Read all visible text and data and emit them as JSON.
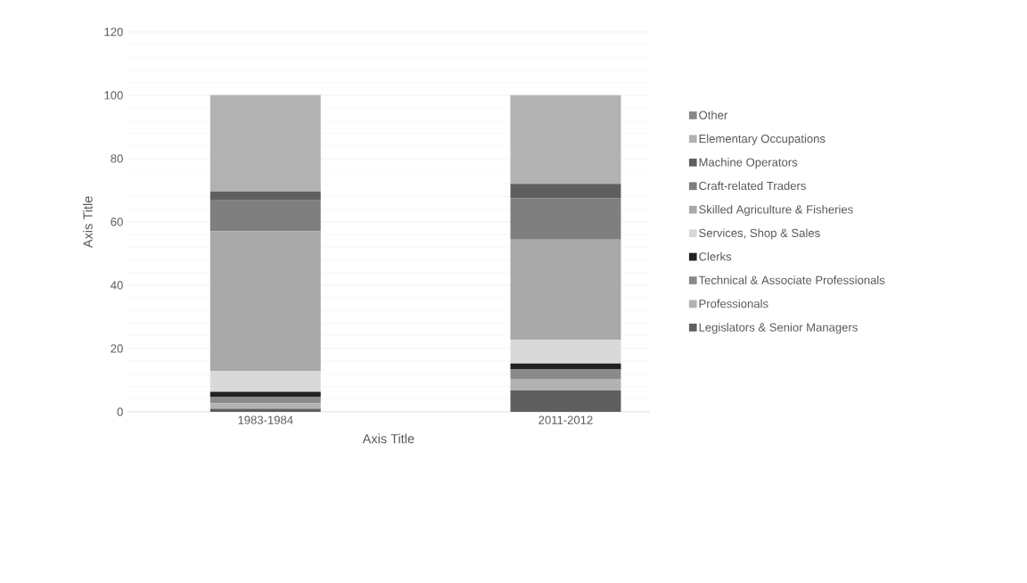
{
  "chart_data": {
    "type": "bar",
    "stacked": true,
    "xlabel": "Axis Title",
    "ylabel": "Axis Title",
    "categories": [
      "1983-1984",
      "2011-2012"
    ],
    "ylim": [
      0,
      120
    ],
    "yticks": [
      0,
      20,
      40,
      60,
      80,
      100,
      120
    ],
    "grid": "y",
    "legend": "right",
    "series": [
      {
        "name": "Legislators & Senior Managers",
        "color": "#5f5f5f",
        "values": [
          1.0,
          6.8
        ]
      },
      {
        "name": "Professionals",
        "color": "#b2b2b2",
        "values": [
          1.7,
          3.6
        ]
      },
      {
        "name": "Technical & Associate Professionals",
        "color": "#8a8a8a",
        "values": [
          2.1,
          3.0
        ]
      },
      {
        "name": "Clerks",
        "color": "#222222",
        "values": [
          1.5,
          1.9
        ]
      },
      {
        "name": "Services, Shop & Sales",
        "color": "#d9d9d9",
        "values": [
          6.5,
          7.4
        ]
      },
      {
        "name": "Skilled Agriculture & Fisheries",
        "color": "#a9a9a9",
        "values": [
          44.3,
          31.7
        ]
      },
      {
        "name": "Craft-related Traders",
        "color": "#7f7f7f",
        "values": [
          9.7,
          13.0
        ]
      },
      {
        "name": "Machine Operators",
        "color": "#5f5f5f",
        "values": [
          2.8,
          4.6
        ]
      },
      {
        "name": "Elementary Occupations",
        "color": "#b2b2b2",
        "values": [
          30.2,
          28.0
        ]
      },
      {
        "name": "Other",
        "color": "#888888",
        "values": [
          0.2,
          0.0
        ]
      }
    ]
  }
}
